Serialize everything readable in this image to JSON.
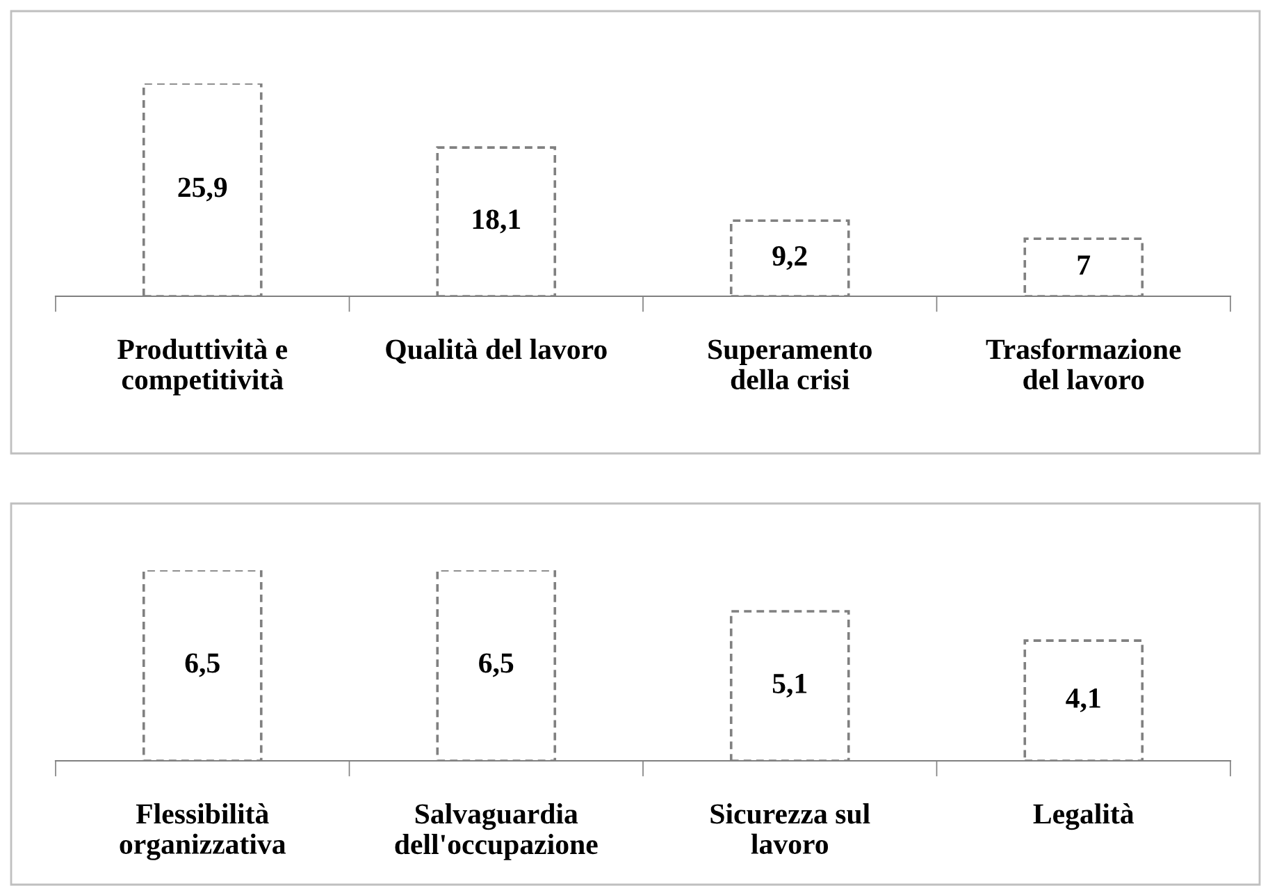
{
  "chart_data": [
    {
      "type": "bar",
      "categories": [
        "Produttività e\ncompetitività",
        "Qualità del lavoro",
        "Superamento\ndella crisi",
        "Trasformazione\ndel lavoro"
      ],
      "values": [
        25.9,
        18.1,
        9.2,
        7
      ],
      "value_labels": [
        "25,9",
        "18,1",
        "9,2",
        "7"
      ],
      "color": "#808080",
      "grid": false,
      "legend": false
    },
    {
      "type": "bar",
      "categories": [
        "Flessibilità\norganizzativa",
        "Salvaguardia\ndell'occupazione",
        "Sicurezza sul\nlavoro",
        "Legalità"
      ],
      "values": [
        6.5,
        6.5,
        5.1,
        4.1
      ],
      "value_labels": [
        "6,5",
        "6,5",
        "5,1",
        "4,1"
      ],
      "color": "#808080",
      "grid": false,
      "legend": false
    }
  ]
}
